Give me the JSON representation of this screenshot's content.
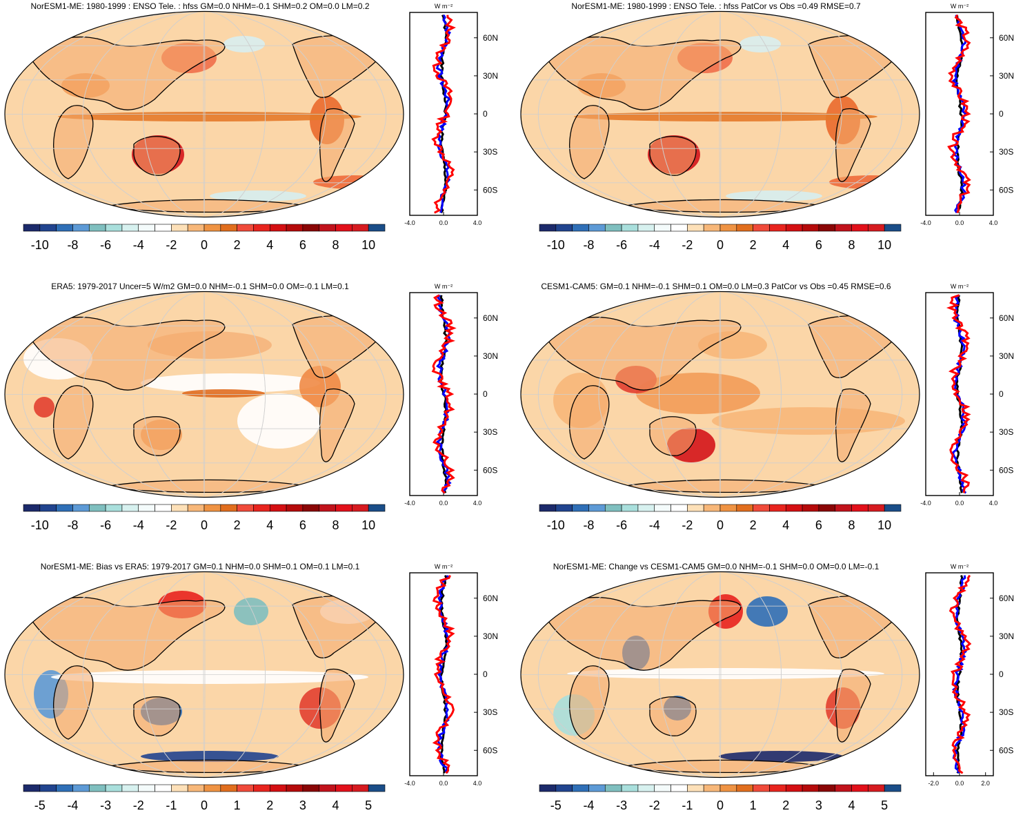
{
  "panels": [
    {
      "id": "p1",
      "title": "NorESM1-ME: 1980-1999 : ENSO Tele. : hfss GM=0.0 NHM=-0.1 SHM=0.2 OM=0.0 LM=0.2",
      "colorbar_labels": [
        "-10",
        "-8",
        "-6",
        "-4",
        "-2",
        "0",
        "2",
        "4",
        "6",
        "8",
        "10"
      ],
      "zonal_xlabels": [
        "-4.0",
        "0.0",
        "4.0"
      ],
      "zonal_xlim": [
        -4,
        4
      ]
    },
    {
      "id": "p2",
      "title": "NorESM1-ME: 1980-1999 : ENSO Tele. : hfss PatCor vs Obs =0.49 RMSE=0.7",
      "colorbar_labels": [
        "-10",
        "-8",
        "-6",
        "-4",
        "-2",
        "0",
        "2",
        "4",
        "6",
        "8",
        "10"
      ],
      "zonal_xlabels": [
        "-4.0",
        "0.0",
        "4.0"
      ],
      "zonal_xlim": [
        -4,
        4
      ]
    },
    {
      "id": "p3",
      "title": "ERA5: 1979-2017 Uncer=5 W/m2 GM=0.0 NHM=-0.1 SHM=0.0 OM=-0.1 LM=0.1",
      "colorbar_labels": [
        "-10",
        "-8",
        "-6",
        "-4",
        "-2",
        "0",
        "2",
        "4",
        "6",
        "8",
        "10"
      ],
      "zonal_xlabels": [
        "-4.0",
        "0.0",
        "4.0"
      ],
      "zonal_xlim": [
        -4,
        4
      ]
    },
    {
      "id": "p4",
      "title": "CESM1-CAM5: GM=0.1 NHM=-0.1 SHM=0.1 OM=0.0 LM=0.3 PatCor vs Obs =0.45 RMSE=0.6",
      "colorbar_labels": [
        "-10",
        "-8",
        "-6",
        "-4",
        "-2",
        "0",
        "2",
        "4",
        "6",
        "8",
        "10"
      ],
      "zonal_xlabels": [
        "-4.0",
        "0.0",
        "4.0"
      ],
      "zonal_xlim": [
        -4,
        4
      ]
    },
    {
      "id": "p5",
      "title": "NorESM1-ME: Bias vs ERA5: 1979-2017 GM=0.1 NHM=0.0 SHM=0.1 OM=0.1 LM=0.1",
      "colorbar_labels": [
        "-5",
        "-4",
        "-3",
        "-2",
        "-1",
        "0",
        "1",
        "2",
        "3",
        "4",
        "5"
      ],
      "zonal_xlabels": [
        "-4.0",
        "0.0",
        "4.0"
      ],
      "zonal_xlim": [
        -4,
        4
      ]
    },
    {
      "id": "p6",
      "title": "NorESM1-ME: Change vs CESM1-CAM5 GM=0.0 NHM=-0.1 SHM=0.0 OM=0.0 LM=-0.1",
      "colorbar_labels": [
        "-5",
        "-4",
        "-3",
        "-2",
        "-1",
        "0",
        "1",
        "2",
        "3",
        "4",
        "5"
      ],
      "zonal_xlabels": [
        "-2.0",
        "0.0",
        "2.0"
      ],
      "zonal_xlim": [
        -2.6,
        2.6
      ]
    }
  ],
  "zonal_units": "W m⁻²",
  "zonal_lat_labels": [
    "60N",
    "30N",
    "0",
    "30S",
    "60S"
  ],
  "colors": {
    "colorbar": [
      "#1c2a6b",
      "#21448f",
      "#2f6fb7",
      "#5d9ad6",
      "#7fbfbf",
      "#a9dfdc",
      "#d7f1ef",
      "#f4fbfb",
      "#ffffff",
      "#fde0b8",
      "#f7b779",
      "#ef9343",
      "#e16e1e",
      "#f04a3a",
      "#e8241e",
      "#d40f12",
      "#b50a0a",
      "#8a0606",
      "#c1121b",
      "#e2101a",
      "#d61b20",
      "#1a4d88"
    ],
    "ocean_base": "#fbd6a8",
    "land_base": "#f4a96b",
    "zonal_model": "#ff0000",
    "zonal_obs": "#0000ff",
    "zonal_land": "#000000"
  }
}
